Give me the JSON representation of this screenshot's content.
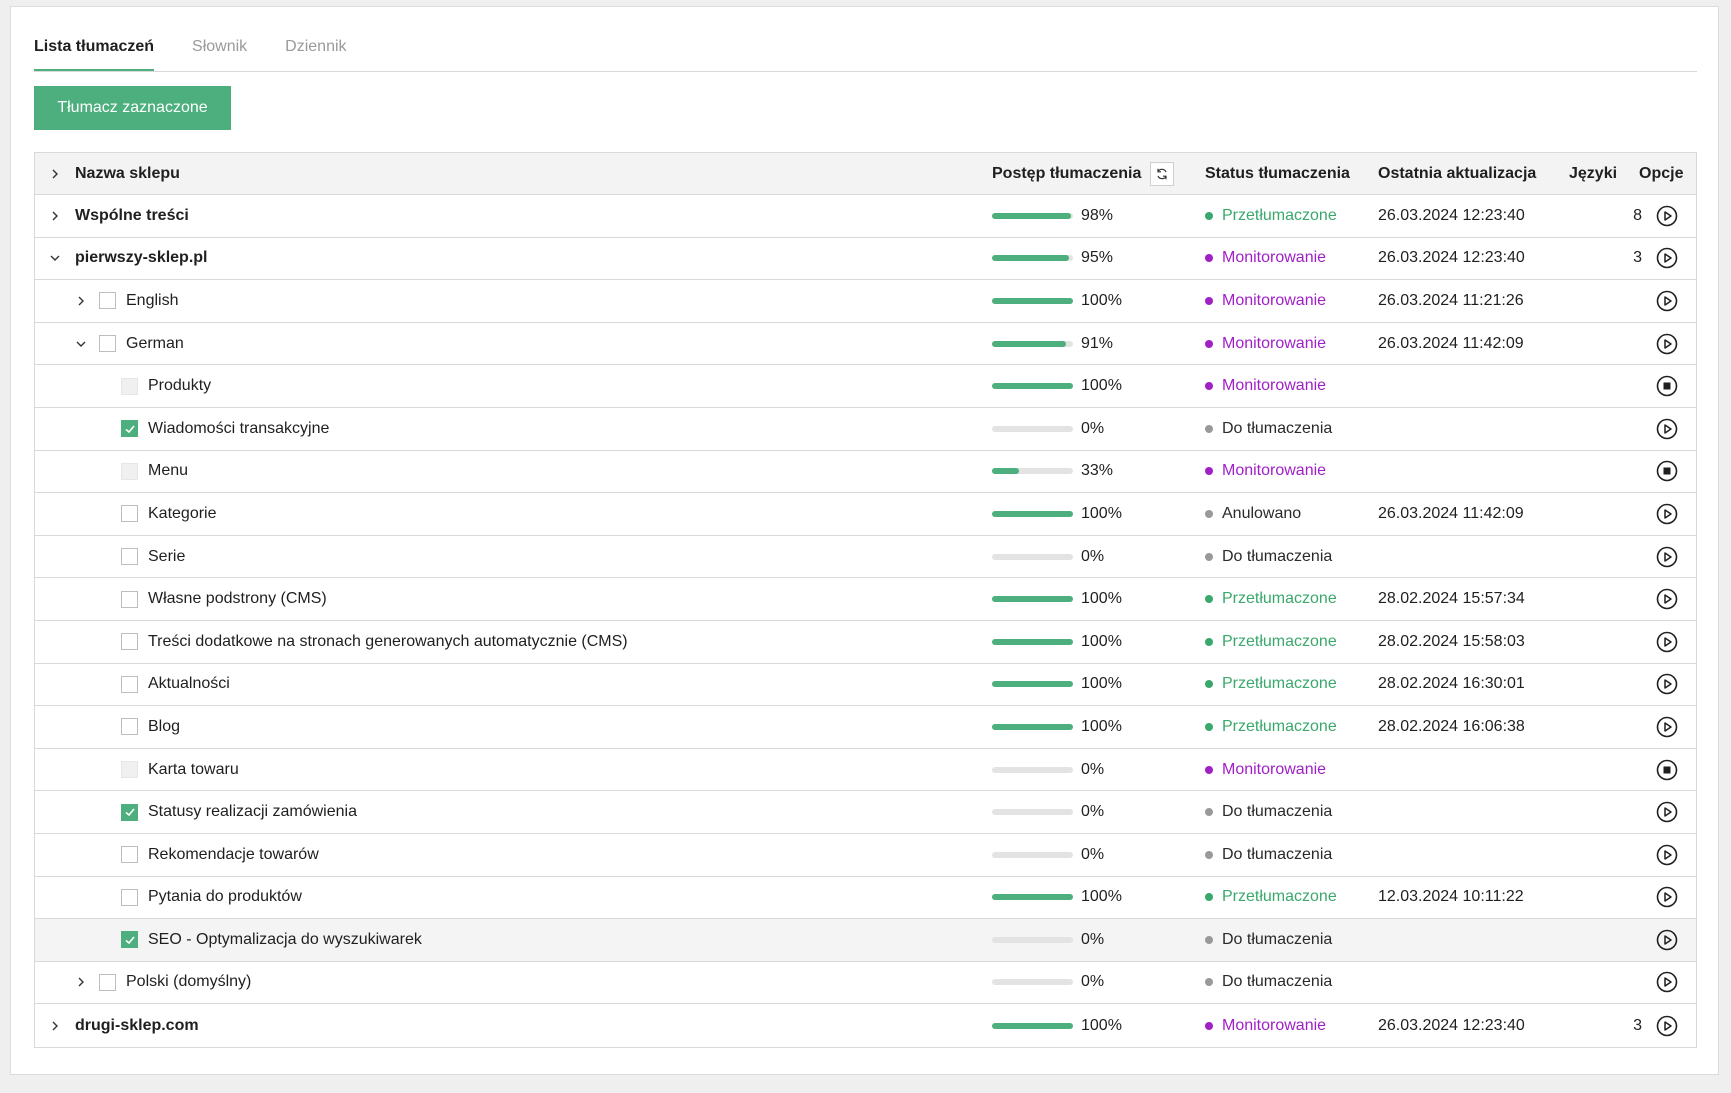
{
  "tabs": [
    {
      "label": "Lista tłumaczeń",
      "active": true
    },
    {
      "label": "Słownik",
      "active": false
    },
    {
      "label": "Dziennik",
      "active": false
    }
  ],
  "translate_button": "Tłumacz zaznaczone",
  "table": {
    "headers": {
      "name": "Nazwa sklepu",
      "progress": "Postęp tłumaczenia",
      "status": "Status tłumaczenia",
      "updated": "Ostatnia aktualizacja",
      "languages": "Języki",
      "options": "Opcje"
    },
    "rows": [
      {
        "level": 0,
        "chevron": "right",
        "checkbox": "none",
        "bold": true,
        "name": "Wspólne treści",
        "progress": 98,
        "progress_label": "98%",
        "status": "Przetłumaczone",
        "status_kind": "green",
        "updated": "26.03.2024 12:23:40",
        "languages": "8",
        "action": "play"
      },
      {
        "level": 0,
        "chevron": "down",
        "checkbox": "none",
        "bold": true,
        "name": "pierwszy-sklep.pl",
        "progress": 95,
        "progress_label": "95%",
        "status": "Monitorowanie",
        "status_kind": "purple",
        "updated": "26.03.2024 12:23:40",
        "languages": "3",
        "action": "play"
      },
      {
        "level": 1,
        "chevron": "right",
        "checkbox": "empty",
        "bold": false,
        "name": "English",
        "progress": 100,
        "progress_label": "100%",
        "status": "Monitorowanie",
        "status_kind": "purple",
        "updated": "26.03.2024 11:21:26",
        "languages": "",
        "action": "play"
      },
      {
        "level": 1,
        "chevron": "down",
        "checkbox": "empty",
        "bold": false,
        "name": "German",
        "progress": 91,
        "progress_label": "91%",
        "status": "Monitorowanie",
        "status_kind": "purple",
        "updated": "26.03.2024 11:42:09",
        "languages": "",
        "action": "play"
      },
      {
        "level": 2,
        "chevron": "none",
        "checkbox": "disabled",
        "bold": false,
        "name": "Produkty",
        "progress": 100,
        "progress_label": "100%",
        "status": "Monitorowanie",
        "status_kind": "purple",
        "updated": "",
        "languages": "",
        "action": "stop"
      },
      {
        "level": 2,
        "chevron": "none",
        "checkbox": "checked",
        "bold": false,
        "name": "Wiadomości transakcyjne",
        "progress": 0,
        "progress_label": "0%",
        "status": "Do tłumaczenia",
        "status_kind": "gray",
        "updated": "",
        "languages": "",
        "action": "play"
      },
      {
        "level": 2,
        "chevron": "none",
        "checkbox": "disabled",
        "bold": false,
        "name": "Menu",
        "progress": 33,
        "progress_label": "33%",
        "status": "Monitorowanie",
        "status_kind": "purple",
        "updated": "",
        "languages": "",
        "action": "stop"
      },
      {
        "level": 2,
        "chevron": "none",
        "checkbox": "empty",
        "bold": false,
        "name": "Kategorie",
        "progress": 100,
        "progress_label": "100%",
        "status": "Anulowano",
        "status_kind": "gray",
        "updated": "26.03.2024 11:42:09",
        "languages": "",
        "action": "play"
      },
      {
        "level": 2,
        "chevron": "none",
        "checkbox": "empty",
        "bold": false,
        "name": "Serie",
        "progress": 0,
        "progress_label": "0%",
        "status": "Do tłumaczenia",
        "status_kind": "gray",
        "updated": "",
        "languages": "",
        "action": "play"
      },
      {
        "level": 2,
        "chevron": "none",
        "checkbox": "empty",
        "bold": false,
        "name": "Własne podstrony (CMS)",
        "progress": 100,
        "progress_label": "100%",
        "status": "Przetłumaczone",
        "status_kind": "green",
        "updated": "28.02.2024 15:57:34",
        "languages": "",
        "action": "play"
      },
      {
        "level": 2,
        "chevron": "none",
        "checkbox": "empty",
        "bold": false,
        "name": "Treści dodatkowe na stronach generowanych automatycznie (CMS)",
        "progress": 100,
        "progress_label": "100%",
        "status": "Przetłumaczone",
        "status_kind": "green",
        "updated": "28.02.2024 15:58:03",
        "languages": "",
        "action": "play"
      },
      {
        "level": 2,
        "chevron": "none",
        "checkbox": "empty",
        "bold": false,
        "name": "Aktualności",
        "progress": 100,
        "progress_label": "100%",
        "status": "Przetłumaczone",
        "status_kind": "green",
        "updated": "28.02.2024 16:30:01",
        "languages": "",
        "action": "play"
      },
      {
        "level": 2,
        "chevron": "none",
        "checkbox": "empty",
        "bold": false,
        "name": "Blog",
        "progress": 100,
        "progress_label": "100%",
        "status": "Przetłumaczone",
        "status_kind": "green",
        "updated": "28.02.2024 16:06:38",
        "languages": "",
        "action": "play"
      },
      {
        "level": 2,
        "chevron": "none",
        "checkbox": "disabled",
        "bold": false,
        "name": "Karta towaru",
        "progress": 0,
        "progress_label": "0%",
        "status": "Monitorowanie",
        "status_kind": "purple",
        "updated": "",
        "languages": "",
        "action": "stop"
      },
      {
        "level": 2,
        "chevron": "none",
        "checkbox": "checked",
        "bold": false,
        "name": "Statusy realizacji zamówienia",
        "progress": 0,
        "progress_label": "0%",
        "status": "Do tłumaczenia",
        "status_kind": "gray",
        "updated": "",
        "languages": "",
        "action": "play"
      },
      {
        "level": 2,
        "chevron": "none",
        "checkbox": "empty",
        "bold": false,
        "name": "Rekomendacje towarów",
        "progress": 0,
        "progress_label": "0%",
        "status": "Do tłumaczenia",
        "status_kind": "gray",
        "updated": "",
        "languages": "",
        "action": "play"
      },
      {
        "level": 2,
        "chevron": "none",
        "checkbox": "empty",
        "bold": false,
        "name": "Pytania do produktów",
        "progress": 100,
        "progress_label": "100%",
        "status": "Przetłumaczone",
        "status_kind": "green",
        "updated": "12.03.2024 10:11:22",
        "languages": "",
        "action": "play"
      },
      {
        "level": 2,
        "chevron": "none",
        "checkbox": "checked",
        "bold": false,
        "highlight": true,
        "name": "SEO - Optymalizacja do wyszukiwarek",
        "progress": 0,
        "progress_label": "0%",
        "status": "Do tłumaczenia",
        "status_kind": "gray",
        "updated": "",
        "languages": "",
        "action": "play"
      },
      {
        "level": 1,
        "chevron": "right",
        "checkbox": "empty",
        "bold": false,
        "name": "Polski (domyślny)",
        "progress": 0,
        "progress_label": "0%",
        "status": "Do tłumaczenia",
        "status_kind": "gray",
        "updated": "",
        "languages": "",
        "action": "play"
      },
      {
        "level": 0,
        "chevron": "right",
        "checkbox": "none",
        "bold": true,
        "name": "drugi-sklep.com",
        "progress": 100,
        "progress_label": "100%",
        "status": "Monitorowanie",
        "status_kind": "purple",
        "updated": "26.03.2024 12:23:40",
        "languages": "3",
        "action": "play"
      }
    ]
  },
  "colors": {
    "accent": "#4caf7d",
    "status_green": "#3aa86d",
    "status_purple": "#a020c8",
    "status_gray": "#999999"
  }
}
